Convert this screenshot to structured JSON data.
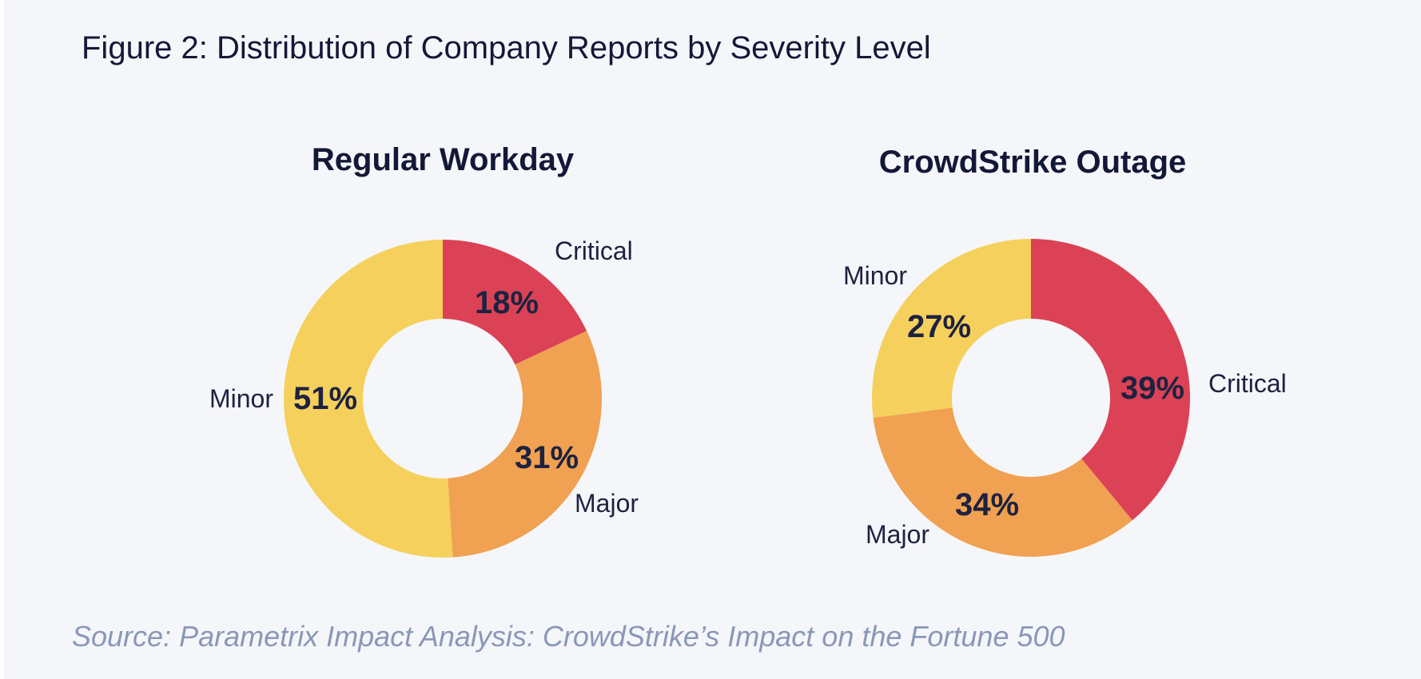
{
  "figure": {
    "title": "Figure 2: Distribution of Company Reports by Severity Level",
    "source": "Source: Parametrix Impact Analysis: CrowdStrike’s Impact on the Fortune 500"
  },
  "colors": {
    "Critical": "#db4255",
    "Major": "#f0a152",
    "Minor": "#f5d05c",
    "background": "#f5f6f9"
  },
  "chart_data": [
    {
      "type": "pie",
      "style": "donut",
      "title": "Regular Workday",
      "categories": [
        "Critical",
        "Major",
        "Minor"
      ],
      "values": [
        18,
        31,
        51
      ],
      "value_labels": [
        "18%",
        "31%",
        "51%"
      ],
      "start_angle": "12 o'clock",
      "direction": "clockwise"
    },
    {
      "type": "pie",
      "style": "donut",
      "title": "CrowdStrike Outage",
      "categories": [
        "Critical",
        "Major",
        "Minor"
      ],
      "values": [
        39,
        34,
        27
      ],
      "value_labels": [
        "39%",
        "34%",
        "27%"
      ],
      "start_angle": "12 o'clock",
      "direction": "clockwise"
    }
  ]
}
